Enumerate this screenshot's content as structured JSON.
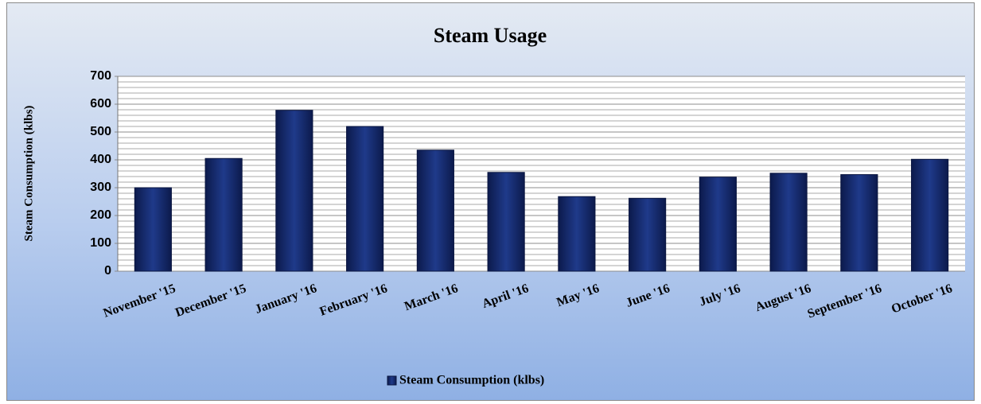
{
  "chart_data": {
    "type": "bar",
    "title": "Steam Usage",
    "y_label": "Steam Consumption (klbs)",
    "categories": [
      "November '15",
      "December '15",
      "January '16",
      "February '16",
      "March '16",
      "April '16",
      "May '16",
      "June '16",
      "July '16",
      "August '16",
      "September '16",
      "October '16"
    ],
    "series": [
      {
        "name": "Steam Consumption (klbs)",
        "color": "#14286e",
        "values": [
          300,
          405,
          578,
          520,
          435,
          355,
          268,
          262,
          338,
          352,
          347,
          402
        ]
      }
    ],
    "ylim": [
      0,
      700
    ],
    "yticks": [
      0,
      100,
      200,
      300,
      400,
      500,
      600,
      700
    ],
    "yminorticks": [
      20,
      40,
      60,
      80,
      120,
      140,
      160,
      180,
      220,
      240,
      260,
      280,
      320,
      340,
      360,
      380,
      420,
      440,
      460,
      480,
      520,
      540,
      560,
      580,
      620,
      640,
      660,
      680
    ],
    "grid": true,
    "legend": "bottom"
  }
}
